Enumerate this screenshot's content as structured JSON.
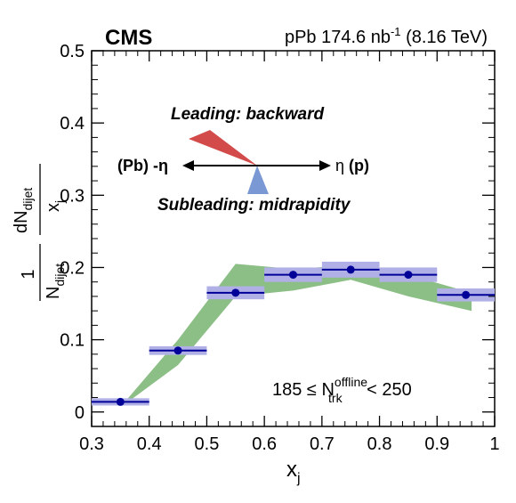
{
  "chart_data": {
    "type": "scatter",
    "experiment": "CMS",
    "luminosity": {
      "main": "pPb 174.6 nb",
      "sup": "-1",
      "tail": " (8.16 TeV)"
    },
    "xlabel": {
      "main": "x",
      "sub": "j"
    },
    "ylabel": {
      "prefix": "1",
      "den_main": "N",
      "den_sub": "dijet",
      "num_main": "dN",
      "num_sub": "dijet",
      "dx_main": "x",
      "dx_sub": "j"
    },
    "xlim": [
      0.3,
      1.0
    ],
    "ylim": [
      -0.02,
      0.5
    ],
    "xticks": [
      "0.3",
      "0.4",
      "0.5",
      "0.6",
      "0.7",
      "0.8",
      "0.9",
      "1"
    ],
    "yticks": [
      "0",
      "0.1",
      "0.2",
      "0.3",
      "0.4",
      "0.5"
    ],
    "x": [
      0.35,
      0.45,
      0.55,
      0.65,
      0.75,
      0.85,
      0.95
    ],
    "bin_low": [
      0.3,
      0.4,
      0.5,
      0.6,
      0.7,
      0.8,
      0.9
    ],
    "bin_high": [
      0.4,
      0.5,
      0.6,
      0.7,
      0.8,
      0.9,
      1.0
    ],
    "values": [
      0.014,
      0.085,
      0.165,
      0.19,
      0.197,
      0.19,
      0.162
    ],
    "syst": [
      0.001,
      0.002,
      0.005,
      0.006,
      0.007,
      0.006,
      0.005
    ],
    "band": {
      "x": [
        0.36,
        0.45,
        0.55,
        0.65,
        0.75,
        0.85,
        0.96
      ],
      "upper": [
        0.016,
        0.1,
        0.205,
        0.198,
        0.203,
        0.19,
        0.165
      ],
      "lower": [
        0.012,
        0.065,
        0.16,
        0.168,
        0.183,
        0.16,
        0.14
      ]
    },
    "annotation": {
      "prefix": "185 ≤ N",
      "sup": "offline",
      "sub": "trk",
      "suffix": " < 250"
    },
    "diagram": {
      "leading_label": "Leading: backward",
      "subleading_label": "Subleading: midrapidity",
      "left_label": "(Pb) -η",
      "right_label_eta": "η",
      "right_label_p": "(p)"
    },
    "colors": {
      "marker": "#000099",
      "syst_box": "#b0b0e6",
      "band": "#8cbf86",
      "leading": "#d24a4a",
      "subleading": "#7a98d4"
    }
  }
}
